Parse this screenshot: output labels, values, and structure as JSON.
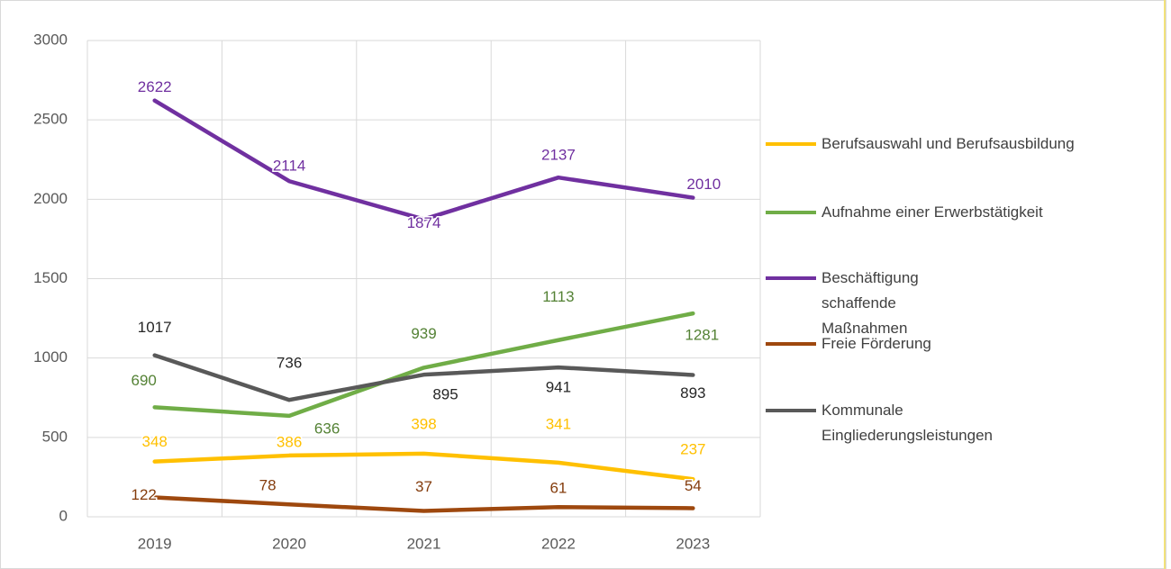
{
  "chart_data": {
    "type": "line",
    "categories": [
      "2019",
      "2020",
      "2021",
      "2022",
      "2023"
    ],
    "series": [
      {
        "name": "Berufsauswahl und Berufsausbildung",
        "color": "#FFC000",
        "values": [
          348,
          386,
          398,
          341,
          237
        ]
      },
      {
        "name": "Aufnahme einer Erwerbstätigkeit",
        "color": "#70AD47",
        "values": [
          690,
          636,
          939,
          1113,
          1281
        ]
      },
      {
        "name": "Beschäftigung schaffende Maßnahmen",
        "color": "#7030A0",
        "values": [
          2622,
          2114,
          1874,
          2137,
          2010
        ]
      },
      {
        "name": "Freie Förderung",
        "color": "#9E480E",
        "values": [
          122,
          78,
          37,
          61,
          54
        ]
      },
      {
        "name": "Kommunale Eingliederungsleistungen",
        "color": "#595959",
        "values": [
          1017,
          736,
          895,
          941,
          893
        ]
      }
    ],
    "ylim": [
      0,
      3000
    ],
    "yticks": [
      0,
      500,
      1000,
      1500,
      2000,
      2500,
      3000
    ],
    "grid": true,
    "legend": "right"
  }
}
